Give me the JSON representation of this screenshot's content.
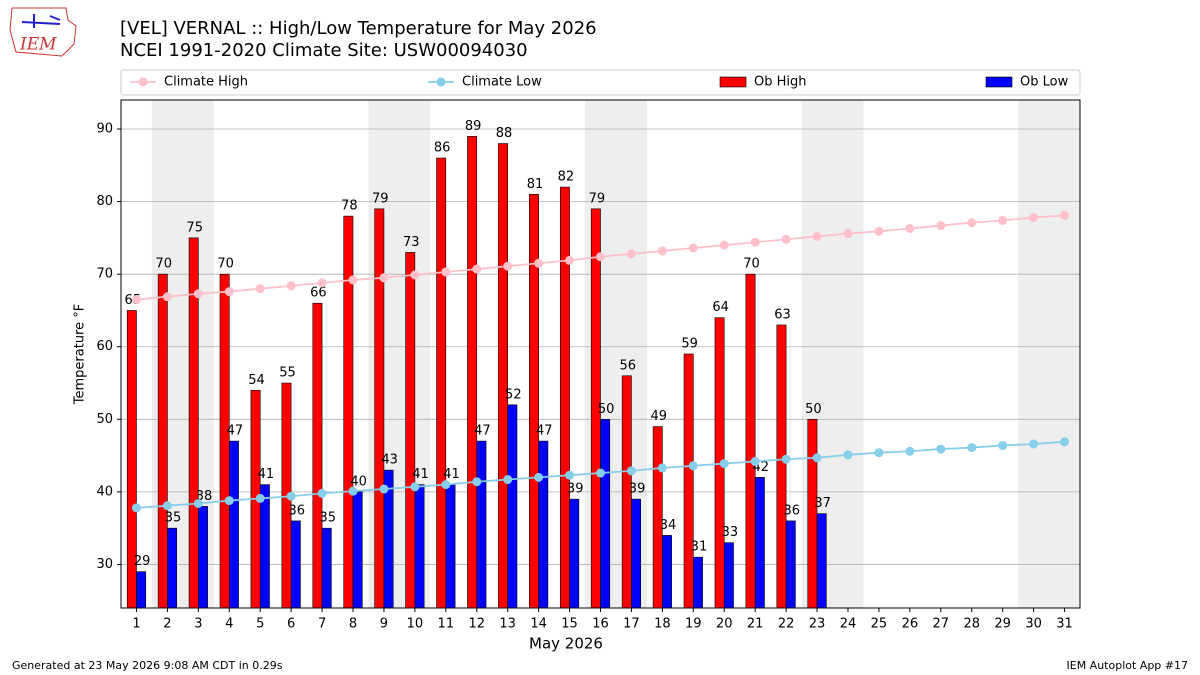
{
  "logo": "IEM",
  "footer": {
    "left": "Generated at 23 May 2026 9:08 AM CDT in 0.29s",
    "right": "IEM Autoplot App #17"
  },
  "chart_data": {
    "type": "bar",
    "title": "[VEL] VERNAL :: High/Low Temperature for May 2026",
    "subtitle": "NCEI 1991-2020 Climate Site: USW00094030",
    "x_label": "May 2026",
    "y_label": "Temperature °F",
    "categories": [
      "1",
      "2",
      "3",
      "4",
      "5",
      "6",
      "7",
      "8",
      "9",
      "10",
      "11",
      "12",
      "13",
      "14",
      "15",
      "16",
      "17",
      "18",
      "19",
      "20",
      "21",
      "22",
      "23",
      "24",
      "25",
      "26",
      "27",
      "28",
      "29",
      "30",
      "31"
    ],
    "ylim": [
      24,
      94
    ],
    "yticks": [
      30,
      40,
      50,
      60,
      70,
      80,
      90
    ],
    "grid": true,
    "series": [
      {
        "name": "Climate High",
        "type": "line",
        "color": "#ffc0cb",
        "values": [
          66.5,
          66.9,
          67.3,
          67.6,
          68.0,
          68.4,
          68.8,
          69.2,
          69.5,
          69.9,
          70.3,
          70.7,
          71.1,
          71.5,
          71.9,
          72.4,
          72.8,
          73.2,
          73.6,
          74.0,
          74.4,
          74.8,
          75.2,
          75.6,
          75.9,
          76.3,
          76.7,
          77.1,
          77.4,
          77.8,
          78.1
        ]
      },
      {
        "name": "Climate Low",
        "type": "line",
        "color": "#87ceeb",
        "values": [
          37.8,
          38.1,
          38.4,
          38.8,
          39.1,
          39.4,
          39.8,
          40.1,
          40.4,
          40.7,
          41.0,
          41.4,
          41.7,
          42.0,
          42.3,
          42.6,
          42.9,
          43.3,
          43.6,
          43.9,
          44.2,
          44.5,
          44.7,
          45.1,
          45.4,
          45.6,
          45.9,
          46.1,
          46.4,
          46.6,
          46.9
        ]
      },
      {
        "name": "Ob High",
        "type": "bar",
        "color": "#ff0000",
        "values": [
          65,
          70,
          75,
          70,
          54,
          55,
          66,
          78,
          79,
          73,
          86,
          89,
          88,
          81,
          82,
          79,
          56,
          49,
          59,
          64,
          70,
          63,
          50,
          null,
          null,
          null,
          null,
          null,
          null,
          null,
          null
        ]
      },
      {
        "name": "Ob Low",
        "type": "bar",
        "color": "#0000ff",
        "values": [
          29,
          35,
          38,
          47,
          41,
          36,
          35,
          40,
          43,
          41,
          41,
          47,
          52,
          47,
          39,
          50,
          39,
          34,
          31,
          33,
          42,
          36,
          37,
          null,
          null,
          null,
          null,
          null,
          null,
          null,
          null
        ]
      }
    ]
  }
}
